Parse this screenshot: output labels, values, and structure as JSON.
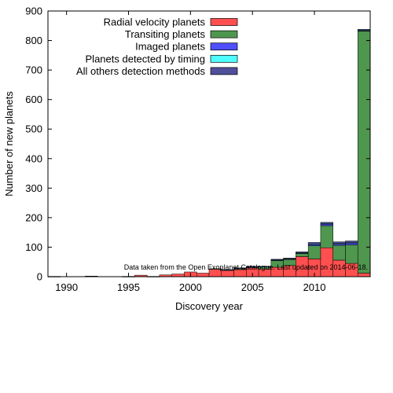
{
  "chart_data": {
    "type": "bar",
    "stacked": true,
    "title": "",
    "xlabel": "Discovery year",
    "ylabel": "Number of new planets",
    "xlim": [
      1988.5,
      2014.5
    ],
    "ylim": [
      0,
      900
    ],
    "xticks": [
      1990,
      1995,
      2000,
      2005,
      2010
    ],
    "yticks": [
      0,
      100,
      200,
      300,
      400,
      500,
      600,
      700,
      800,
      900
    ],
    "grid": false,
    "legend_position": "top-center",
    "note": "Data taken from the Open Exoplanet Catalogue. Last updated on 2014-06-18.",
    "x": [
      1989,
      1990,
      1991,
      1992,
      1993,
      1994,
      1995,
      1996,
      1997,
      1998,
      1999,
      2000,
      2001,
      2002,
      2003,
      2004,
      2005,
      2006,
      2007,
      2008,
      2009,
      2010,
      2011,
      2012,
      2013,
      2014
    ],
    "series": [
      {
        "name": "Radial velocity planets",
        "color": "#ff4f4f",
        "values": [
          1,
          0,
          0,
          0,
          0,
          0,
          1,
          5,
          1,
          6,
          9,
          16,
          12,
          26,
          22,
          24,
          30,
          26,
          32,
          38,
          68,
          60,
          98,
          56,
          45,
          12
        ]
      },
      {
        "name": "Transiting planets",
        "color": "#4f964f",
        "values": [
          0,
          0,
          0,
          0,
          0,
          0,
          0,
          0,
          0,
          0,
          0,
          0,
          0,
          1,
          1,
          4,
          4,
          8,
          22,
          20,
          10,
          45,
          75,
          50,
          63,
          820
        ]
      },
      {
        "name": "Imaged planets",
        "color": "#4f4fff",
        "values": [
          0,
          0,
          0,
          0,
          0,
          0,
          0,
          0,
          0,
          0,
          0,
          0,
          0,
          0,
          0,
          1,
          1,
          1,
          2,
          2,
          2,
          5,
          5,
          4,
          6,
          2
        ]
      },
      {
        "name": "Planets detected by timing",
        "color": "#4fffff",
        "values": [
          0,
          0,
          0,
          0,
          0,
          0,
          0,
          0,
          0,
          0,
          0,
          0,
          0,
          0,
          0,
          0,
          0,
          0,
          1,
          1,
          1,
          1,
          2,
          2,
          2,
          1
        ]
      },
      {
        "name": "All others detection methods",
        "color": "#4f4f9a",
        "values": [
          0,
          0,
          0,
          2,
          0,
          0,
          0,
          0,
          0,
          0,
          0,
          0,
          0,
          0,
          1,
          1,
          0,
          0,
          2,
          2,
          3,
          5,
          4,
          6,
          5,
          3
        ]
      }
    ]
  }
}
